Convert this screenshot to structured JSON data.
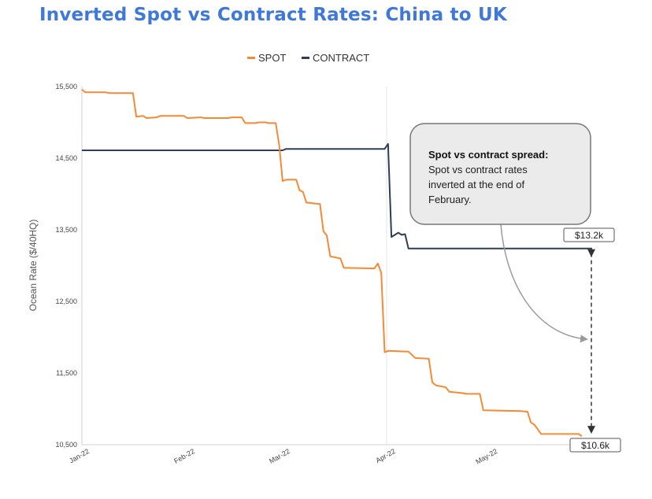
{
  "title": "Inverted Spot vs Contract Rates: China to UK",
  "legend": {
    "spot_label": "SPOT",
    "contract_label": "CONTRACT"
  },
  "annotation": {
    "title": "Spot vs contract spread:",
    "lines": [
      "Spot vs contract rates",
      "inverted at the end of",
      "February."
    ]
  },
  "value_labels": {
    "contract_end": "$13.2k",
    "spot_end": "$10.6k"
  },
  "colors": {
    "spot": "#f58a35",
    "contract": "#2d3e56",
    "title": "#3f78d6",
    "callout_border": "#777777",
    "callout_fill": "#ebebeb"
  },
  "chart_data": {
    "type": "line",
    "title": "Inverted Spot vs Contract Rates: China to UK",
    "xlabel": "",
    "ylabel": "Ocean Rate ($/40HQ)",
    "ylim": [
      10500,
      15500
    ],
    "yticks": [
      10500,
      11500,
      12500,
      13500,
      14500,
      15500
    ],
    "ytick_labels": [
      "10,500",
      "11,500",
      "12,500",
      "13,500",
      "14,500",
      "15,500"
    ],
    "x_range": [
      "2022-01-01",
      "2022-05-31"
    ],
    "xticks": [
      {
        "date": "2022-01-01",
        "label": "Jan-22"
      },
      {
        "date": "2022-02-01",
        "label": "Feb-22"
      },
      {
        "date": "2022-03-01",
        "label": "Mar-22"
      },
      {
        "date": "2022-04-01",
        "label": "Apr-22"
      },
      {
        "date": "2022-05-01",
        "label": "May-22"
      }
    ],
    "legend_position": "top-center",
    "grid": false,
    "series": [
      {
        "name": "SPOT",
        "points": [
          [
            "2022-01-01",
            15460
          ],
          [
            "2022-01-02",
            15420
          ],
          [
            "2022-01-08",
            15420
          ],
          [
            "2022-01-09",
            15410
          ],
          [
            "2022-01-16",
            15410
          ],
          [
            "2022-01-17",
            15080
          ],
          [
            "2022-01-19",
            15090
          ],
          [
            "2022-01-20",
            15060
          ],
          [
            "2022-01-23",
            15070
          ],
          [
            "2022-01-24",
            15090
          ],
          [
            "2022-01-31",
            15090
          ],
          [
            "2022-02-01",
            15060
          ],
          [
            "2022-02-05",
            15070
          ],
          [
            "2022-02-06",
            15060
          ],
          [
            "2022-02-13",
            15060
          ],
          [
            "2022-02-14",
            15070
          ],
          [
            "2022-02-17",
            15070
          ],
          [
            "2022-02-18",
            14990
          ],
          [
            "2022-02-21",
            14990
          ],
          [
            "2022-02-22",
            15000
          ],
          [
            "2022-02-24",
            15000
          ],
          [
            "2022-02-25",
            14990
          ],
          [
            "2022-02-27",
            14990
          ],
          [
            "2022-02-28",
            14680
          ],
          [
            "2022-03-01",
            14180
          ],
          [
            "2022-03-02",
            14200
          ],
          [
            "2022-03-05",
            14200
          ],
          [
            "2022-03-06",
            14050
          ],
          [
            "2022-03-07",
            14030
          ],
          [
            "2022-03-08",
            13880
          ],
          [
            "2022-03-12",
            13860
          ],
          [
            "2022-03-13",
            13480
          ],
          [
            "2022-03-14",
            13420
          ],
          [
            "2022-03-15",
            13130
          ],
          [
            "2022-03-18",
            13100
          ],
          [
            "2022-03-19",
            12970
          ],
          [
            "2022-03-28",
            12960
          ],
          [
            "2022-03-29",
            13030
          ],
          [
            "2022-03-30",
            12900
          ],
          [
            "2022-03-31",
            11790
          ],
          [
            "2022-04-01",
            11810
          ],
          [
            "2022-04-07",
            11800
          ],
          [
            "2022-04-09",
            11710
          ],
          [
            "2022-04-13",
            11700
          ],
          [
            "2022-04-14",
            11370
          ],
          [
            "2022-04-15",
            11330
          ],
          [
            "2022-04-18",
            11300
          ],
          [
            "2022-04-19",
            11240
          ],
          [
            "2022-04-23",
            11220
          ],
          [
            "2022-04-24",
            11210
          ],
          [
            "2022-04-28",
            11210
          ],
          [
            "2022-04-29",
            10980
          ],
          [
            "2022-05-10",
            10970
          ],
          [
            "2022-05-12",
            10960
          ],
          [
            "2022-05-13",
            10810
          ],
          [
            "2022-05-14",
            10780
          ],
          [
            "2022-05-16",
            10650
          ],
          [
            "2022-05-27",
            10650
          ],
          [
            "2022-05-28",
            10620
          ]
        ]
      },
      {
        "name": "CONTRACT",
        "points": [
          [
            "2022-01-01",
            14610
          ],
          [
            "2022-03-01",
            14610
          ],
          [
            "2022-03-02",
            14630
          ],
          [
            "2022-03-31",
            14630
          ],
          [
            "2022-04-01",
            14700
          ],
          [
            "2022-04-02",
            13400
          ],
          [
            "2022-04-04",
            13460
          ],
          [
            "2022-04-05",
            13430
          ],
          [
            "2022-04-06",
            13440
          ],
          [
            "2022-04-07",
            13240
          ],
          [
            "2022-05-31",
            13240
          ]
        ]
      }
    ],
    "annotations": [
      {
        "text": "$13.2k",
        "x": "2022-05-31",
        "y": 13240
      },
      {
        "text": "$10.6k",
        "x": "2022-05-31",
        "y": 10620
      }
    ]
  }
}
